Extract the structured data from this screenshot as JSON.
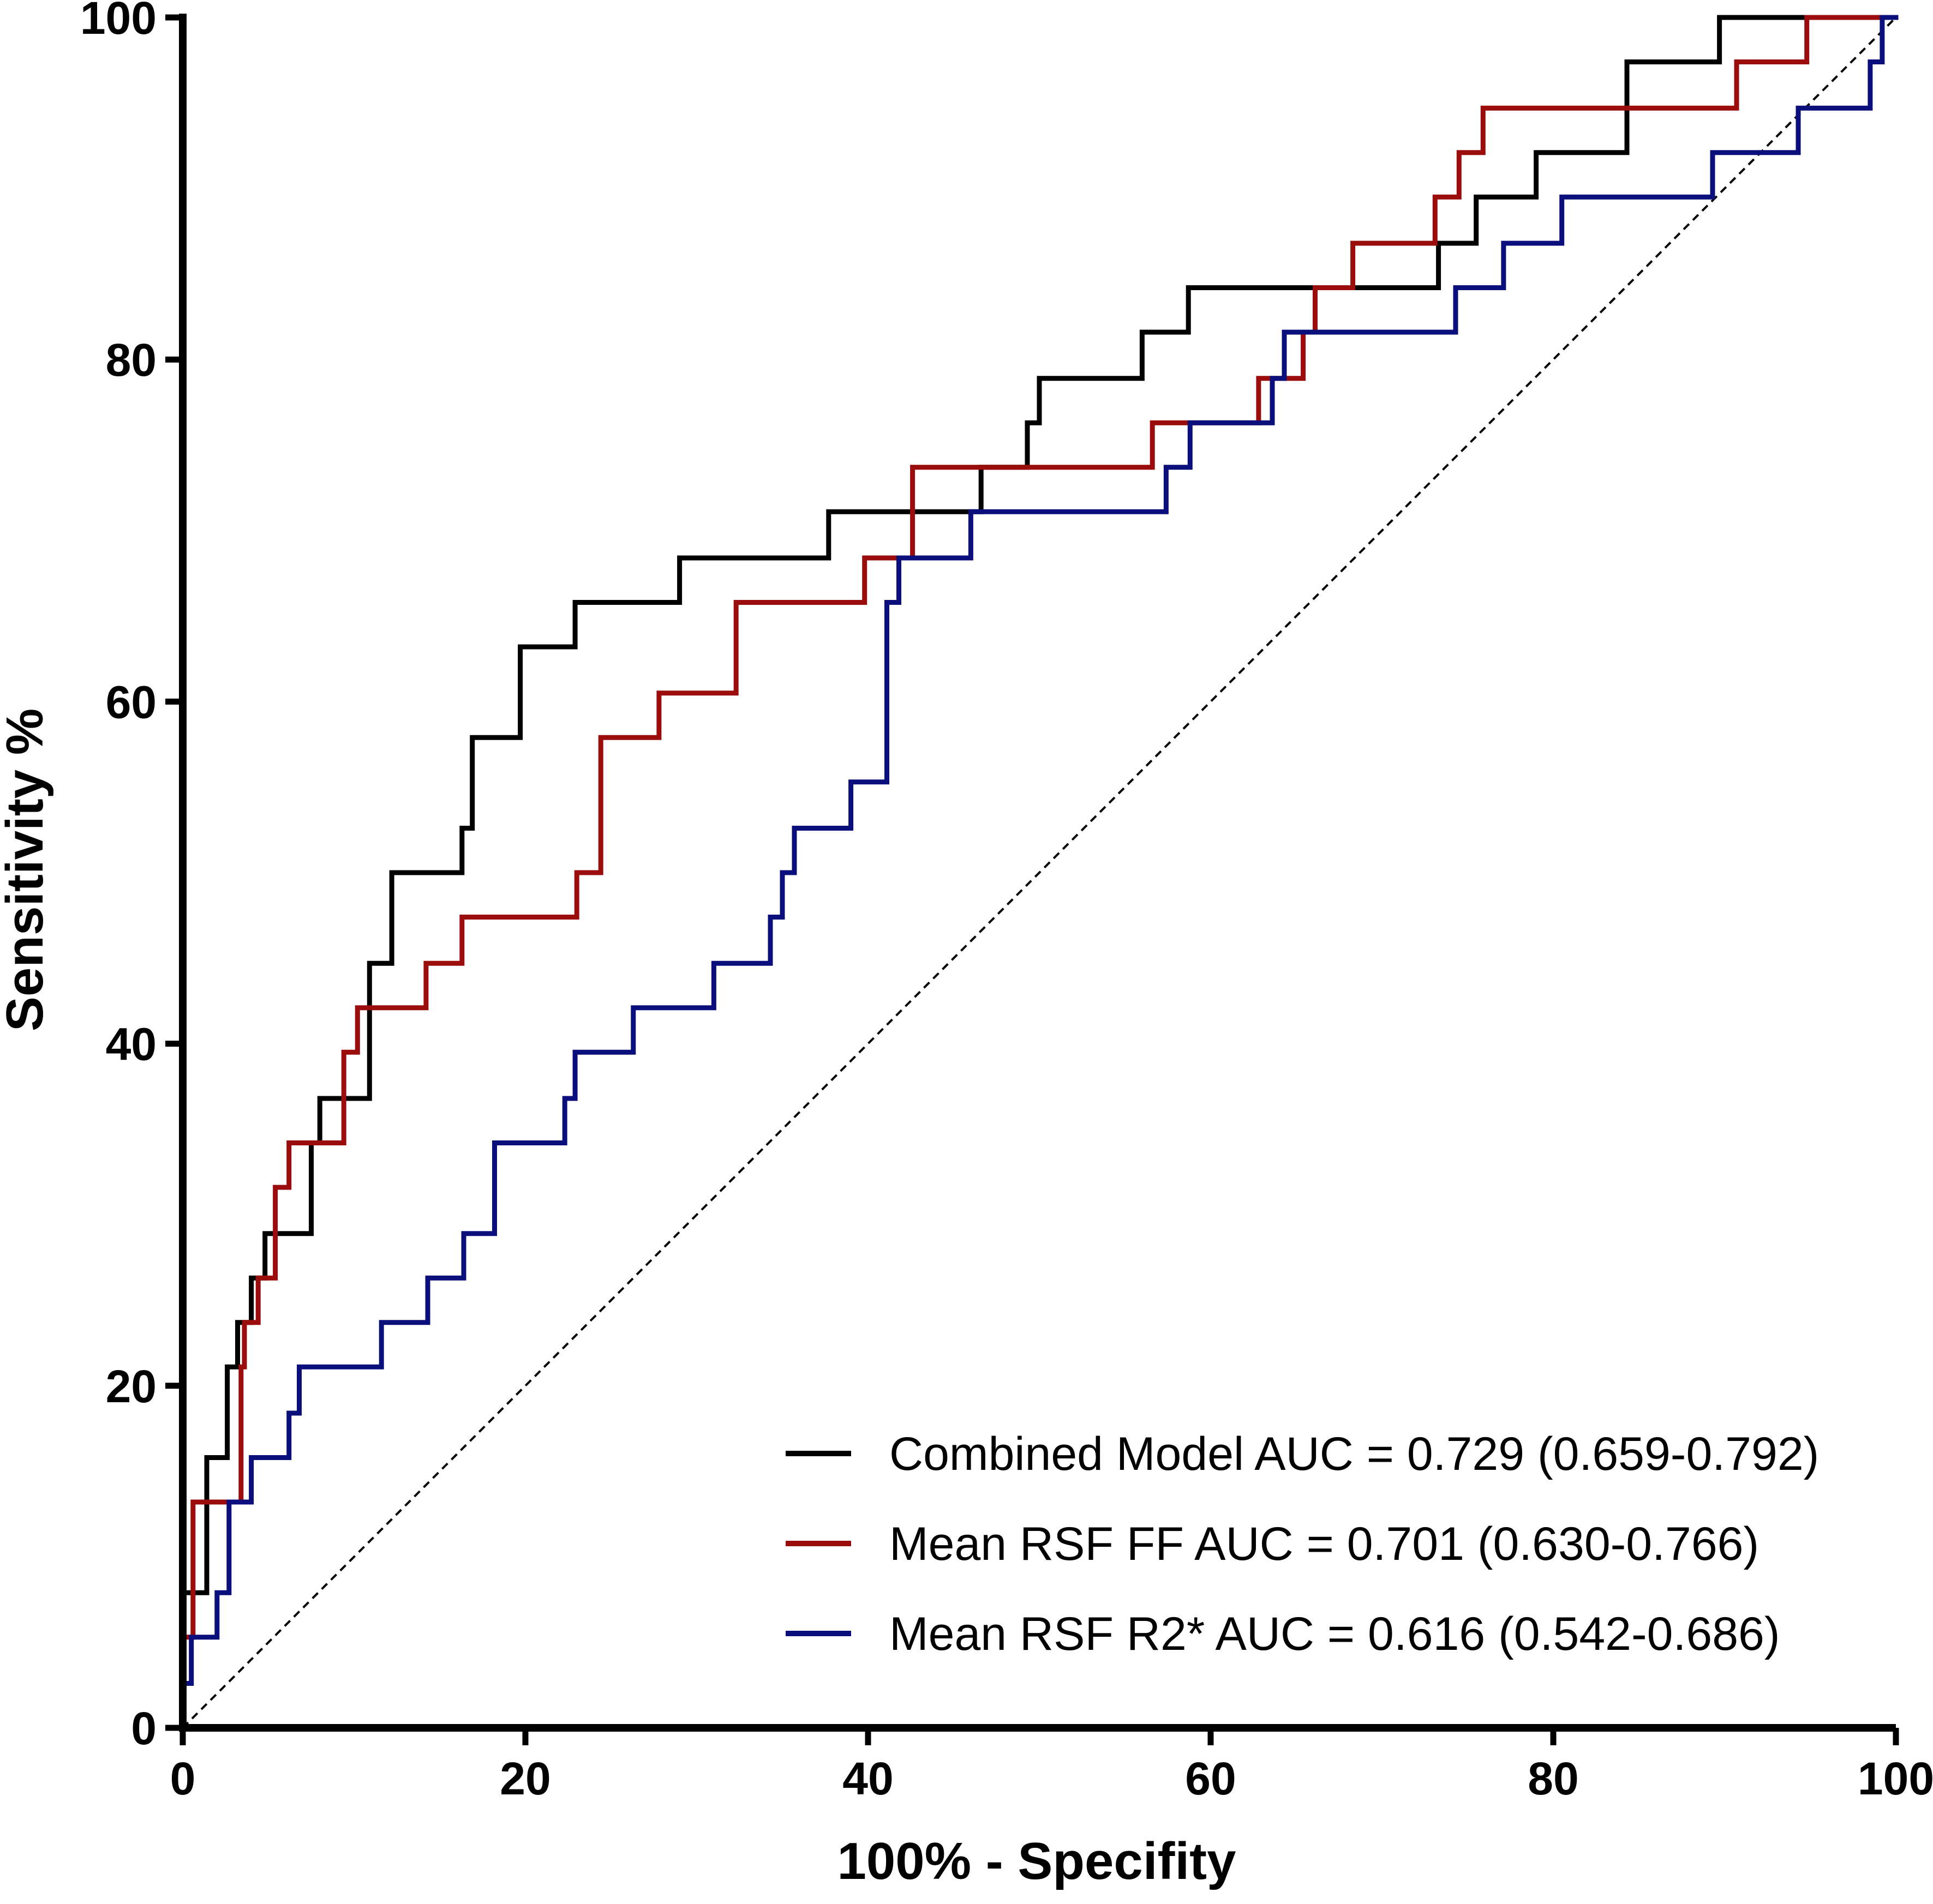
{
  "chart_data": {
    "type": "line",
    "subtype": "roc-step",
    "title": "",
    "xlabel": "100% - Specifity",
    "ylabel": "Sensitivity %",
    "xlim": [
      0,
      100
    ],
    "ylim": [
      0,
      100
    ],
    "xticks": [
      "0",
      "20",
      "40",
      "60",
      "80",
      "100"
    ],
    "yticks": [
      "0",
      "20",
      "40",
      "60",
      "80",
      "100"
    ],
    "grid": false,
    "legend_position": "bottom-right",
    "reference_line": {
      "name": "chance",
      "style": "dashed",
      "color": "#000000",
      "x": [
        0,
        100
      ],
      "y": [
        0,
        100
      ]
    },
    "series": [
      {
        "name": "Combined Model AUC = 0.729 (0.659-0.792)",
        "color": "#000000",
        "points": [
          [
            0,
            0
          ],
          [
            0,
            7.9
          ],
          [
            1.4,
            7.9
          ],
          [
            1.4,
            15.8
          ],
          [
            2.6,
            15.8
          ],
          [
            2.6,
            21.1
          ],
          [
            3.2,
            21.1
          ],
          [
            3.2,
            23.7
          ],
          [
            4,
            23.7
          ],
          [
            4,
            26.3
          ],
          [
            4.8,
            26.3
          ],
          [
            4.8,
            28.9
          ],
          [
            7.5,
            28.9
          ],
          [
            7.5,
            34.2
          ],
          [
            8,
            34.2
          ],
          [
            8,
            36.8
          ],
          [
            10.9,
            36.8
          ],
          [
            10.9,
            44.7
          ],
          [
            12.2,
            44.7
          ],
          [
            12.2,
            50
          ],
          [
            16.3,
            50
          ],
          [
            16.3,
            52.6
          ],
          [
            16.9,
            52.6
          ],
          [
            16.9,
            57.9
          ],
          [
            19.7,
            57.9
          ],
          [
            19.7,
            63.2
          ],
          [
            22.9,
            63.2
          ],
          [
            22.9,
            65.8
          ],
          [
            29,
            65.8
          ],
          [
            29,
            68.4
          ],
          [
            37.7,
            68.4
          ],
          [
            37.7,
            71.1
          ],
          [
            46.6,
            71.1
          ],
          [
            46.6,
            73.7
          ],
          [
            49.3,
            73.7
          ],
          [
            49.3,
            76.3
          ],
          [
            50,
            76.3
          ],
          [
            50,
            78.9
          ],
          [
            56,
            78.9
          ],
          [
            56,
            81.6
          ],
          [
            58.7,
            81.6
          ],
          [
            58.7,
            84.2
          ],
          [
            73.3,
            84.2
          ],
          [
            73.3,
            86.8
          ],
          [
            75.5,
            86.8
          ],
          [
            75.5,
            89.5
          ],
          [
            79,
            89.5
          ],
          [
            79,
            92.1
          ],
          [
            84.3,
            92.1
          ],
          [
            84.3,
            97.4
          ],
          [
            89.7,
            97.4
          ],
          [
            89.7,
            100
          ],
          [
            100,
            100
          ]
        ]
      },
      {
        "name": "Mean RSF FF AUC = 0.701 (0.630-0.766)",
        "color": "#9b0d0d",
        "points": [
          [
            0,
            0
          ],
          [
            0,
            5.3
          ],
          [
            0.6,
            5.3
          ],
          [
            0.6,
            13.2
          ],
          [
            3.4,
            13.2
          ],
          [
            3.4,
            21.1
          ],
          [
            3.6,
            21.1
          ],
          [
            3.6,
            23.7
          ],
          [
            4.4,
            23.7
          ],
          [
            4.4,
            26.3
          ],
          [
            5.4,
            26.3
          ],
          [
            5.4,
            31.6
          ],
          [
            6.2,
            31.6
          ],
          [
            6.2,
            34.2
          ],
          [
            9.4,
            34.2
          ],
          [
            9.4,
            39.5
          ],
          [
            10.2,
            39.5
          ],
          [
            10.2,
            42.1
          ],
          [
            14.2,
            42.1
          ],
          [
            14.2,
            44.7
          ],
          [
            16.3,
            44.7
          ],
          [
            16.3,
            47.4
          ],
          [
            23,
            47.4
          ],
          [
            23,
            50
          ],
          [
            24.4,
            50
          ],
          [
            24.4,
            57.9
          ],
          [
            27.8,
            57.9
          ],
          [
            27.8,
            60.5
          ],
          [
            32.3,
            60.5
          ],
          [
            32.3,
            65.8
          ],
          [
            39.8,
            65.8
          ],
          [
            39.8,
            68.4
          ],
          [
            42.6,
            68.4
          ],
          [
            42.6,
            73.7
          ],
          [
            56.6,
            73.7
          ],
          [
            56.6,
            76.3
          ],
          [
            62.8,
            76.3
          ],
          [
            62.8,
            78.9
          ],
          [
            65.4,
            78.9
          ],
          [
            65.4,
            81.6
          ],
          [
            66.1,
            81.6
          ],
          [
            66.1,
            84.2
          ],
          [
            68.3,
            84.2
          ],
          [
            68.3,
            86.8
          ],
          [
            73.1,
            86.8
          ],
          [
            73.1,
            89.5
          ],
          [
            74.5,
            89.5
          ],
          [
            74.5,
            92.1
          ],
          [
            75.9,
            92.1
          ],
          [
            75.9,
            94.7
          ],
          [
            90.7,
            94.7
          ],
          [
            90.7,
            97.4
          ],
          [
            94.8,
            97.4
          ],
          [
            94.8,
            100
          ],
          [
            100,
            100
          ]
        ]
      },
      {
        "name": "Mean RSF R2* AUC = 0.616 (0.542-0.686)",
        "color": "#0b0f7c",
        "points": [
          [
            0,
            0
          ],
          [
            0,
            2.6
          ],
          [
            0.5,
            2.6
          ],
          [
            0.5,
            5.3
          ],
          [
            2,
            5.3
          ],
          [
            2,
            7.9
          ],
          [
            2.7,
            7.9
          ],
          [
            2.7,
            13.2
          ],
          [
            4,
            13.2
          ],
          [
            4,
            15.8
          ],
          [
            6.2,
            15.8
          ],
          [
            6.2,
            18.4
          ],
          [
            6.8,
            18.4
          ],
          [
            6.8,
            21.1
          ],
          [
            11.6,
            21.1
          ],
          [
            11.6,
            23.7
          ],
          [
            14.3,
            23.7
          ],
          [
            14.3,
            26.3
          ],
          [
            16.4,
            26.3
          ],
          [
            16.4,
            28.9
          ],
          [
            18.2,
            28.9
          ],
          [
            18.2,
            34.2
          ],
          [
            22.3,
            34.2
          ],
          [
            22.3,
            36.8
          ],
          [
            22.9,
            36.8
          ],
          [
            22.9,
            39.5
          ],
          [
            26.3,
            39.5
          ],
          [
            26.3,
            42.1
          ],
          [
            31,
            42.1
          ],
          [
            31,
            44.7
          ],
          [
            34.3,
            44.7
          ],
          [
            34.3,
            47.4
          ],
          [
            35,
            47.4
          ],
          [
            35,
            50
          ],
          [
            35.7,
            50
          ],
          [
            35.7,
            52.6
          ],
          [
            39,
            52.6
          ],
          [
            39,
            55.3
          ],
          [
            41.1,
            55.3
          ],
          [
            41.1,
            65.8
          ],
          [
            41.8,
            65.8
          ],
          [
            41.8,
            68.4
          ],
          [
            46,
            68.4
          ],
          [
            46,
            71.1
          ],
          [
            57.4,
            71.1
          ],
          [
            57.4,
            73.7
          ],
          [
            58.8,
            73.7
          ],
          [
            58.8,
            76.3
          ],
          [
            63.6,
            76.3
          ],
          [
            63.6,
            78.9
          ],
          [
            64.3,
            78.9
          ],
          [
            64.3,
            81.6
          ],
          [
            74.3,
            81.6
          ],
          [
            74.3,
            84.2
          ],
          [
            77.1,
            84.2
          ],
          [
            77.1,
            86.8
          ],
          [
            80.5,
            86.8
          ],
          [
            80.5,
            89.5
          ],
          [
            89.3,
            89.5
          ],
          [
            89.3,
            92.1
          ],
          [
            94.3,
            92.1
          ],
          [
            94.3,
            94.7
          ],
          [
            98.5,
            94.7
          ],
          [
            98.5,
            97.4
          ],
          [
            99.2,
            97.4
          ],
          [
            99.2,
            100
          ],
          [
            100,
            100
          ]
        ]
      }
    ]
  }
}
